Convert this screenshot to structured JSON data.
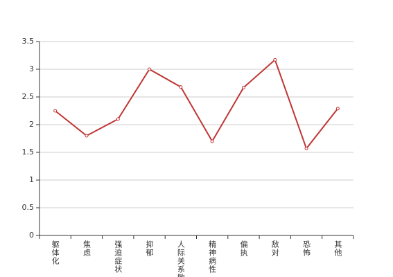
{
  "chart_data": {
    "type": "line",
    "categories": [
      "躯体化",
      "焦虑",
      "强迫症状",
      "抑郁",
      "人际关系敏感",
      "精神病性",
      "偏执",
      "敌对",
      "恐怖",
      "其他"
    ],
    "series": [
      {
        "color": "#c03534",
        "values": [
          2.25,
          1.8,
          2.1,
          3.0,
          2.68,
          1.7,
          2.67,
          3.17,
          1.57,
          2.29
        ]
      }
    ],
    "ylim": [
      0,
      3.5
    ],
    "yticks": [
      0,
      0.5,
      1,
      1.5,
      2,
      2.5,
      3,
      3.5
    ],
    "grid": true
  }
}
